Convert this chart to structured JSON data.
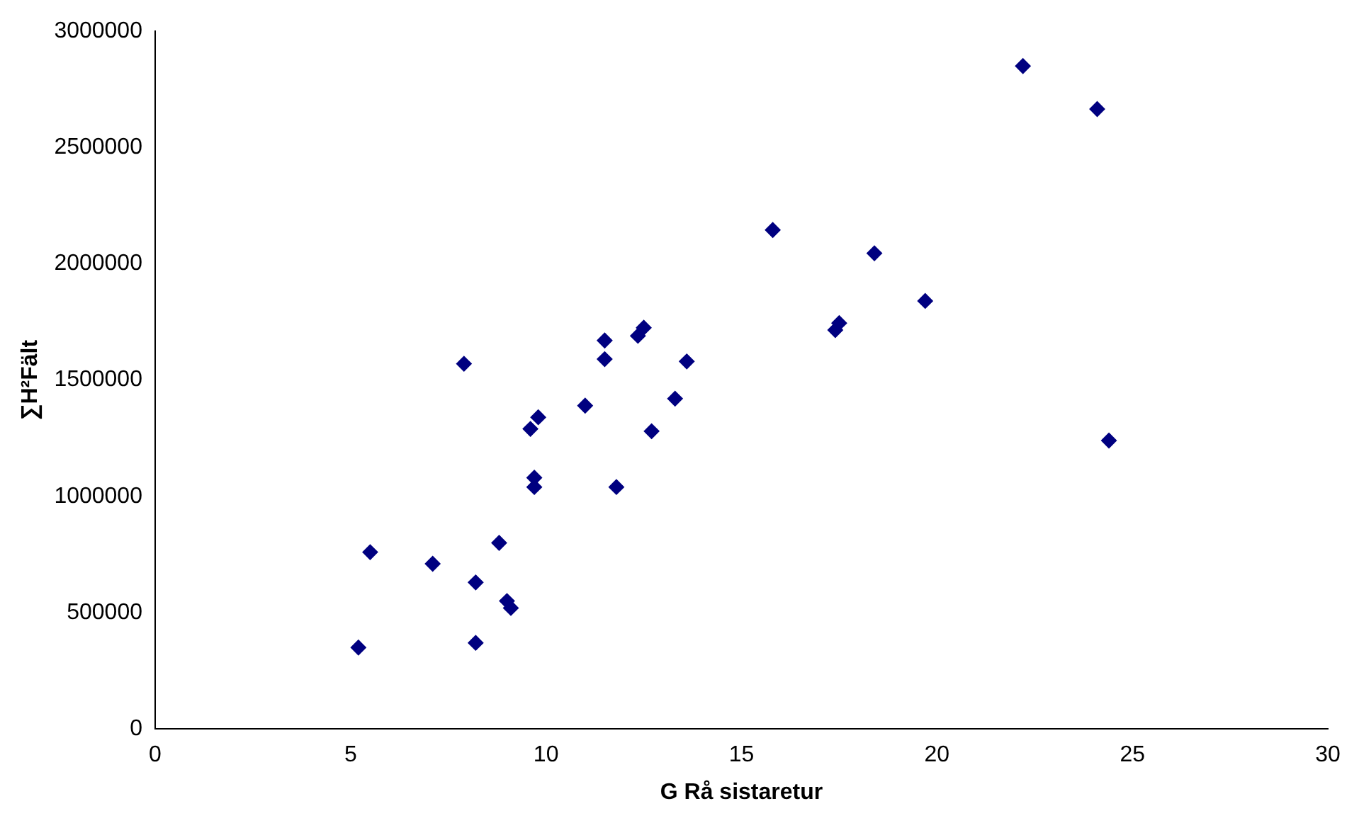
{
  "chart_data": {
    "type": "scatter",
    "xlabel": "G Rå sistaretur",
    "ylabel": "∑H²Fält",
    "x": [
      5.2,
      5.5,
      7.1,
      7.9,
      8.2,
      8.2,
      8.8,
      9.0,
      9.1,
      9.6,
      9.8,
      9.7,
      9.7,
      11.0,
      11.8,
      11.5,
      11.5,
      12.35,
      12.5,
      12.7,
      13.3,
      13.6,
      15.8,
      17.4,
      17.5,
      18.4,
      19.7,
      22.2,
      24.1,
      24.4
    ],
    "values": [
      350000,
      760000,
      710000,
      1570000,
      630000,
      370000,
      800000,
      550000,
      520000,
      1290000,
      1340000,
      1040000,
      1080000,
      1390000,
      1040000,
      1670000,
      1590000,
      1690000,
      1725000,
      1280000,
      1420000,
      1580000,
      2145000,
      1715000,
      1745000,
      2045000,
      1840000,
      2850000,
      2665000,
      1240000
    ],
    "color": "#000080",
    "marker": "diamond",
    "xlim": [
      0,
      30
    ],
    "xticks": [
      0,
      5,
      10,
      15,
      20,
      25,
      30
    ],
    "ylim": [
      0,
      3000000
    ],
    "yticks": [
      0,
      500000,
      1000000,
      1500000,
      2000000,
      2500000,
      3000000
    ],
    "grid": false,
    "legend": false
  }
}
